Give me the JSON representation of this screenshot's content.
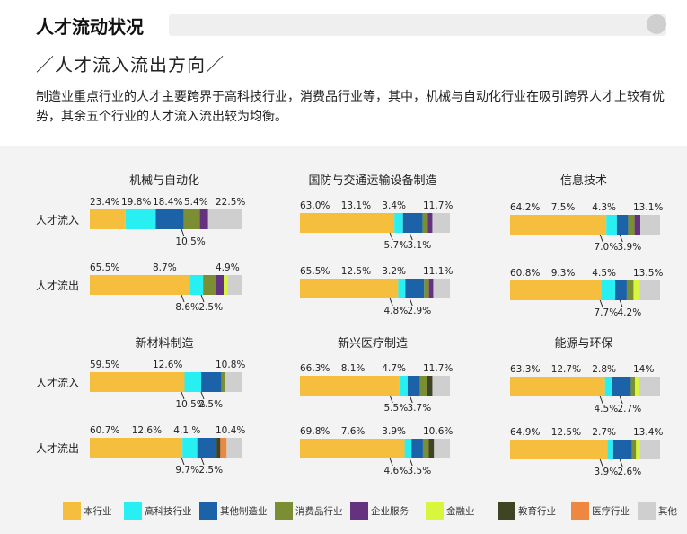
{
  "header": {
    "title": "人才流动状况",
    "subtitle": "／人才流入流出方向／",
    "description": "制造业重点行业的人才主要跨界于高科技行业，消费品行业等，其中，机械与自动化行业在吸引跨界人才上较有优势，其余五个行业的人才流入流出较为均衡。"
  },
  "legend": [
    {
      "label": "本行业",
      "color": "#F5BE3C"
    },
    {
      "label": "高科技行业",
      "color": "#28EFF2"
    },
    {
      "label": "其他制造业",
      "color": "#1B62A8"
    },
    {
      "label": "消费品行业",
      "color": "#7B8E34"
    },
    {
      "label": "企业服务",
      "color": "#65327F"
    },
    {
      "label": "金融业",
      "color": "#D9F53E"
    },
    {
      "label": "教育行业",
      "color": "#3F4422"
    },
    {
      "label": "医疗行业",
      "color": "#EE8840"
    },
    {
      "label": "其他",
      "color": "#CFCFCF"
    }
  ],
  "chart_data": [
    {
      "type": "bar",
      "stacked": true,
      "orientation": "horizontal",
      "title": "机械与自动化",
      "categories": [
        "人才流入",
        "人才流出"
      ],
      "series_labels": [
        "本行业",
        "高科技行业",
        "其他制造业",
        "消费品行业",
        "企业服务",
        "金融业",
        "教育行业",
        "医疗行业",
        "其他"
      ],
      "rows": [
        {
          "category": "人才流入",
          "values": [
            23.4,
            19.8,
            18.4,
            10.5,
            5.4,
            0,
            0,
            0,
            22.5
          ],
          "labels_top": [
            "23.4%",
            "19.8%",
            "18.4%",
            "5.4%",
            "22.5%"
          ],
          "labels_bottom": [
            "10.5%"
          ]
        },
        {
          "category": "人才流出",
          "values": [
            65.5,
            8.7,
            0,
            8.6,
            4.9,
            2.5,
            0,
            0,
            9.8
          ],
          "labels_top": [
            "65.5%",
            "8.7%",
            "4.9%"
          ],
          "labels_bottom": [
            "8.6%",
            "2.5%"
          ]
        }
      ]
    },
    {
      "type": "bar",
      "stacked": true,
      "orientation": "horizontal",
      "title": "国防与交通运输设备制造",
      "categories": [
        "人才流入",
        "人才流出"
      ],
      "series_labels": [
        "本行业",
        "高科技行业",
        "其他制造业",
        "消费品行业",
        "企业服务",
        "金融业",
        "教育行业",
        "医疗行业",
        "其他"
      ],
      "rows": [
        {
          "category": "人才流入",
          "values": [
            63.0,
            5.7,
            13.1,
            3.4,
            3.1,
            0,
            0,
            0,
            11.7
          ],
          "labels_top": [
            "63.0%",
            "13.1%",
            "3.4%",
            "11.7%"
          ],
          "labels_bottom": [
            "5.7%",
            "3.1%"
          ]
        },
        {
          "category": "人才流出",
          "values": [
            65.5,
            4.8,
            12.5,
            3.2,
            2.9,
            0,
            0,
            0,
            11.1
          ],
          "labels_top": [
            "65.5%",
            "12.5%",
            "3.2%",
            "11.1%"
          ],
          "labels_bottom": [
            "4.8%",
            "2.9%"
          ]
        }
      ]
    },
    {
      "type": "bar",
      "stacked": true,
      "orientation": "horizontal",
      "title": "信息技术",
      "categories": [
        "人才流入",
        "人才流出"
      ],
      "series_labels": [
        "本行业",
        "高科技行业",
        "其他制造业",
        "消费品行业",
        "企业服务",
        "金融业",
        "教育行业",
        "医疗行业",
        "其他"
      ],
      "rows": [
        {
          "category": "人才流入",
          "values": [
            64.2,
            7.0,
            7.5,
            4.3,
            3.9,
            0,
            0,
            0,
            13.1
          ],
          "labels_top": [
            "64.2%",
            "7.5%",
            "4.3%",
            "13.1%"
          ],
          "labels_bottom": [
            "7.0%",
            "3.9%"
          ]
        },
        {
          "category": "人才流出",
          "values": [
            60.8,
            9.3,
            7.7,
            4.5,
            0,
            4.2,
            0,
            0,
            13.5
          ],
          "labels_top": [
            "60.8%",
            "9.3%",
            "4.5%",
            "13.5%"
          ],
          "labels_bottom": [
            "7.7%",
            "4.2%"
          ]
        }
      ]
    },
    {
      "type": "bar",
      "stacked": true,
      "orientation": "horizontal",
      "title": "新材料制造",
      "categories": [
        "人才流入",
        "人才流出"
      ],
      "series_labels": [
        "本行业",
        "高科技行业",
        "其他制造业",
        "消费品行业",
        "企业服务",
        "金融业",
        "教育行业",
        "医疗行业",
        "其他"
      ],
      "rows": [
        {
          "category": "人才流入",
          "values": [
            59.5,
            10.5,
            12.6,
            2.5,
            0,
            0,
            0,
            0,
            10.8
          ],
          "labels_top": [
            "59.5%",
            "12.6%",
            "10.8%"
          ],
          "labels_bottom": [
            "10.5%",
            "2.5%"
          ]
        },
        {
          "category": "人才流出",
          "values": [
            60.7,
            9.7,
            12.6,
            0,
            0,
            0,
            2.5,
            4.1,
            10.4
          ],
          "labels_top": [
            "60.7%",
            "12.6%",
            "4.1 %",
            "10.4%"
          ],
          "labels_bottom": [
            "9.7%",
            "2.5%"
          ]
        }
      ]
    },
    {
      "type": "bar",
      "stacked": true,
      "orientation": "horizontal",
      "title": "新兴医疗制造",
      "categories": [
        "人才流入",
        "人才流出"
      ],
      "series_labels": [
        "本行业",
        "高科技行业",
        "其他制造业",
        "消费品行业",
        "企业服务",
        "金融业",
        "教育行业",
        "医疗行业",
        "其他"
      ],
      "rows": [
        {
          "category": "人才流入",
          "values": [
            66.3,
            5.5,
            8.1,
            4.7,
            0,
            0,
            3.7,
            0,
            11.7
          ],
          "labels_top": [
            "66.3%",
            "8.1%",
            "4.7%",
            "11.7%"
          ],
          "labels_bottom": [
            "5.5%",
            "3.7%"
          ]
        },
        {
          "category": "人才流出",
          "values": [
            69.8,
            4.6,
            7.6,
            3.9,
            0,
            0,
            3.5,
            0,
            10.6
          ],
          "labels_top": [
            "69.8%",
            "7.6%",
            "3.9%",
            "10.6%"
          ],
          "labels_bottom": [
            "4.6%",
            "3.5%"
          ]
        }
      ]
    },
    {
      "type": "bar",
      "stacked": true,
      "orientation": "horizontal",
      "title": "能源与环保",
      "categories": [
        "人才流入",
        "人才流出"
      ],
      "series_labels": [
        "本行业",
        "高科技行业",
        "其他制造业",
        "消费品行业",
        "企业服务",
        "金融业",
        "教育行业",
        "医疗行业",
        "其他"
      ],
      "rows": [
        {
          "category": "人才流入",
          "values": [
            63.3,
            4.5,
            12.7,
            2.8,
            0,
            2.7,
            0,
            0,
            14
          ],
          "labels_top": [
            "63.3%",
            "12.7%",
            "2.8%",
            "14%"
          ],
          "labels_bottom": [
            "4.5%",
            "2.7%"
          ]
        },
        {
          "category": "人才流出",
          "values": [
            64.9,
            3.9,
            12.5,
            2.7,
            0,
            2.6,
            0,
            0,
            13.4
          ],
          "labels_top": [
            "64.9%",
            "12.5%",
            "2.7%",
            "13.4%"
          ],
          "labels_bottom": [
            "3.9%",
            "2.6%"
          ]
        }
      ]
    }
  ]
}
